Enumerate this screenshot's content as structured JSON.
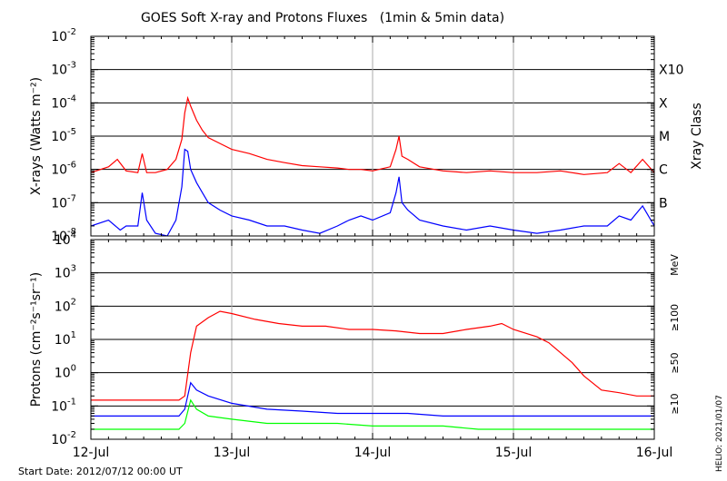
{
  "chart_data": [
    {
      "type": "line",
      "title": "GOES Soft X-ray and Protons Fluxes   (1min & 5min data)",
      "ylabel": "X-rays (Watts m⁻²)",
      "ylabel_right": "Xray Class",
      "y_scale": "log",
      "ylim": [
        1e-08,
        0.01
      ],
      "y_ticks": [
        {
          "main": "10",
          "exp": "-8"
        },
        {
          "main": "10",
          "exp": "-7"
        },
        {
          "main": "10",
          "exp": "-6"
        },
        {
          "main": "10",
          "exp": "-5"
        },
        {
          "main": "10",
          "exp": "-4"
        },
        {
          "main": "10",
          "exp": "-3"
        },
        {
          "main": "10",
          "exp": "-2"
        }
      ],
      "class_labels": [
        {
          "label": "B",
          "value": 1e-07
        },
        {
          "label": "C",
          "value": 1e-06
        },
        {
          "label": "M",
          "value": 1e-05
        },
        {
          "label": "X",
          "value": 0.0001
        },
        {
          "label": "X10",
          "value": 0.001
        }
      ],
      "grid": true,
      "series": [
        {
          "color": "#ff0000",
          "x": [
            "2012-07-12 00:00",
            "2012-07-12 03:00",
            "2012-07-12 04:30",
            "2012-07-12 06:00",
            "2012-07-12 08:00",
            "2012-07-12 08:45",
            "2012-07-12 09:30",
            "2012-07-12 11:00",
            "2012-07-12 13:00",
            "2012-07-12 14:30",
            "2012-07-12 15:30",
            "2012-07-12 16:00",
            "2012-07-12 16:30",
            "2012-07-12 17:00",
            "2012-07-12 18:00",
            "2012-07-12 19:00",
            "2012-07-12 20:00",
            "2012-07-12 22:00",
            "2012-07-13 00:00",
            "2012-07-13 03:00",
            "2012-07-13 06:00",
            "2012-07-13 09:00",
            "2012-07-13 12:00",
            "2012-07-13 15:00",
            "2012-07-13 18:00",
            "2012-07-13 20:00",
            "2012-07-13 22:00",
            "2012-07-14 00:00",
            "2012-07-14 03:00",
            "2012-07-14 04:00",
            "2012-07-14 04:30",
            "2012-07-14 05:00",
            "2012-07-14 06:00",
            "2012-07-14 08:00",
            "2012-07-14 12:00",
            "2012-07-14 16:00",
            "2012-07-14 20:00",
            "2012-07-15 00:00",
            "2012-07-15 04:00",
            "2012-07-15 08:00",
            "2012-07-15 12:00",
            "2012-07-15 16:00",
            "2012-07-15 18:00",
            "2012-07-15 20:00",
            "2012-07-15 22:00",
            "2012-07-16 00:00"
          ],
          "values": [
            8e-07,
            1.2e-06,
            2e-06,
            9e-07,
            8e-07,
            3e-06,
            8e-07,
            8e-07,
            1e-06,
            2e-06,
            8e-06,
            5e-05,
            0.00014,
            8e-05,
            3e-05,
            1.5e-05,
            9e-06,
            6e-06,
            4e-06,
            3e-06,
            2e-06,
            1.6e-06,
            1.3e-06,
            1.2e-06,
            1.1e-06,
            1e-06,
            1e-06,
            9e-07,
            1.2e-06,
            4e-06,
            1e-05,
            2.5e-06,
            2e-06,
            1.2e-06,
            9e-07,
            8e-07,
            9e-07,
            8e-07,
            8e-07,
            9e-07,
            7e-07,
            8e-07,
            1.5e-06,
            8e-07,
            2e-06,
            8e-07
          ]
        },
        {
          "color": "#0000ff",
          "x": [
            "2012-07-12 00:00",
            "2012-07-12 03:00",
            "2012-07-12 05:00",
            "2012-07-12 06:00",
            "2012-07-12 08:00",
            "2012-07-12 08:45",
            "2012-07-12 09:30",
            "2012-07-12 11:00",
            "2012-07-12 13:00",
            "2012-07-12 14:30",
            "2012-07-12 15:30",
            "2012-07-12 16:00",
            "2012-07-12 16:30",
            "2012-07-12 17:00",
            "2012-07-12 18:00",
            "2012-07-12 19:00",
            "2012-07-12 20:00",
            "2012-07-12 22:00",
            "2012-07-13 00:00",
            "2012-07-13 03:00",
            "2012-07-13 06:00",
            "2012-07-13 09:00",
            "2012-07-13 12:00",
            "2012-07-13 15:00",
            "2012-07-13 18:00",
            "2012-07-13 20:00",
            "2012-07-13 22:00",
            "2012-07-14 00:00",
            "2012-07-14 03:00",
            "2012-07-14 04:00",
            "2012-07-14 04:30",
            "2012-07-14 05:00",
            "2012-07-14 06:00",
            "2012-07-14 08:00",
            "2012-07-14 12:00",
            "2012-07-14 16:00",
            "2012-07-14 20:00",
            "2012-07-15 00:00",
            "2012-07-15 04:00",
            "2012-07-15 08:00",
            "2012-07-15 12:00",
            "2012-07-15 16:00",
            "2012-07-15 18:00",
            "2012-07-15 20:00",
            "2012-07-15 22:00",
            "2012-07-16 00:00"
          ],
          "values": [
            2e-08,
            3e-08,
            1.5e-08,
            2e-08,
            2e-08,
            2e-07,
            3e-08,
            1.2e-08,
            1e-08,
            3e-08,
            3e-07,
            4e-06,
            3.5e-06,
            1e-06,
            4e-07,
            2e-07,
            1e-07,
            6e-08,
            4e-08,
            3e-08,
            2e-08,
            2e-08,
            1.5e-08,
            1.2e-08,
            2e-08,
            3e-08,
            4e-08,
            3e-08,
            5e-08,
            2e-07,
            6e-07,
            1e-07,
            6e-08,
            3e-08,
            2e-08,
            1.5e-08,
            2e-08,
            1.5e-08,
            1.2e-08,
            1.5e-08,
            2e-08,
            2e-08,
            4e-08,
            3e-08,
            8e-08,
            2e-08
          ]
        }
      ]
    },
    {
      "type": "line",
      "ylabel": "Protons (cm⁻²s⁻¹sr⁻¹)",
      "ylabel_right": "MeV",
      "y_scale": "log",
      "ylim": [
        0.01,
        10000
      ],
      "y_ticks": [
        {
          "main": "10",
          "exp": "-2"
        },
        {
          "main": "10",
          "exp": "-1"
        },
        {
          "main": "10",
          "exp": "0"
        },
        {
          "main": "10",
          "exp": "1"
        },
        {
          "main": "10",
          "exp": "2"
        },
        {
          "main": "10",
          "exp": "3"
        },
        {
          "main": "10",
          "exp": "4"
        }
      ],
      "threshold": 10,
      "grid": true,
      "x_ticks": [
        "12-Jul",
        "13-Jul",
        "14-Jul",
        "15-Jul",
        "16-Jul"
      ],
      "xlim": [
        "2012-07-12 00:00",
        "2012-07-16 00:00"
      ],
      "series": [
        {
          "name": "≥10",
          "color": "#ff0000",
          "x": [
            "2012-07-12 00:00",
            "2012-07-12 06:00",
            "2012-07-12 12:00",
            "2012-07-12 15:00",
            "2012-07-12 16:00",
            "2012-07-12 17:00",
            "2012-07-12 18:00",
            "2012-07-12 20:00",
            "2012-07-12 22:00",
            "2012-07-13 00:00",
            "2012-07-13 04:00",
            "2012-07-13 08:00",
            "2012-07-13 12:00",
            "2012-07-13 16:00",
            "2012-07-13 20:00",
            "2012-07-14 00:00",
            "2012-07-14 04:00",
            "2012-07-14 08:00",
            "2012-07-14 12:00",
            "2012-07-14 16:00",
            "2012-07-14 20:00",
            "2012-07-14 22:00",
            "2012-07-15 00:00",
            "2012-07-15 04:00",
            "2012-07-15 06:00",
            "2012-07-15 08:00",
            "2012-07-15 10:00",
            "2012-07-15 12:00",
            "2012-07-15 15:00",
            "2012-07-15 18:00",
            "2012-07-15 21:00",
            "2012-07-16 00:00"
          ],
          "values": [
            0.15,
            0.15,
            0.15,
            0.15,
            0.2,
            4,
            25,
            45,
            70,
            60,
            40,
            30,
            25,
            25,
            20,
            20,
            18,
            15,
            15,
            20,
            25,
            30,
            20,
            12,
            8,
            4,
            2,
            0.8,
            0.3,
            0.25,
            0.2,
            0.2
          ]
        },
        {
          "name": "≥50",
          "color": "#0000ff",
          "x": [
            "2012-07-12 00:00",
            "2012-07-12 06:00",
            "2012-07-12 12:00",
            "2012-07-12 15:00",
            "2012-07-12 16:00",
            "2012-07-12 17:00",
            "2012-07-12 18:00",
            "2012-07-12 20:00",
            "2012-07-13 00:00",
            "2012-07-13 06:00",
            "2012-07-13 12:00",
            "2012-07-13 18:00",
            "2012-07-14 00:00",
            "2012-07-14 06:00",
            "2012-07-14 12:00",
            "2012-07-14 18:00",
            "2012-07-15 00:00",
            "2012-07-15 06:00",
            "2012-07-15 12:00",
            "2012-07-15 18:00",
            "2012-07-16 00:00"
          ],
          "values": [
            0.05,
            0.05,
            0.05,
            0.05,
            0.08,
            0.5,
            0.3,
            0.2,
            0.12,
            0.08,
            0.07,
            0.06,
            0.06,
            0.06,
            0.05,
            0.05,
            0.05,
            0.05,
            0.05,
            0.05,
            0.05
          ]
        },
        {
          "name": "≥100",
          "color": "#00ff00",
          "x": [
            "2012-07-12 00:00",
            "2012-07-12 06:00",
            "2012-07-12 12:00",
            "2012-07-12 15:00",
            "2012-07-12 16:00",
            "2012-07-12 17:00",
            "2012-07-12 18:00",
            "2012-07-12 20:00",
            "2012-07-13 00:00",
            "2012-07-13 06:00",
            "2012-07-13 12:00",
            "2012-07-13 18:00",
            "2012-07-14 00:00",
            "2012-07-14 06:00",
            "2012-07-14 12:00",
            "2012-07-14 18:00",
            "2012-07-15 00:00",
            "2012-07-15 06:00",
            "2012-07-15 12:00",
            "2012-07-15 18:00",
            "2012-07-16 00:00"
          ],
          "values": [
            0.02,
            0.02,
            0.02,
            0.02,
            0.03,
            0.15,
            0.08,
            0.05,
            0.04,
            0.03,
            0.03,
            0.03,
            0.025,
            0.025,
            0.025,
            0.02,
            0.02,
            0.02,
            0.02,
            0.02,
            0.02
          ]
        }
      ]
    }
  ],
  "footer": {
    "start_date": "Start Date: 2012/07/12 00:00 UT",
    "credit": "HELIO: 2021/01/07"
  }
}
